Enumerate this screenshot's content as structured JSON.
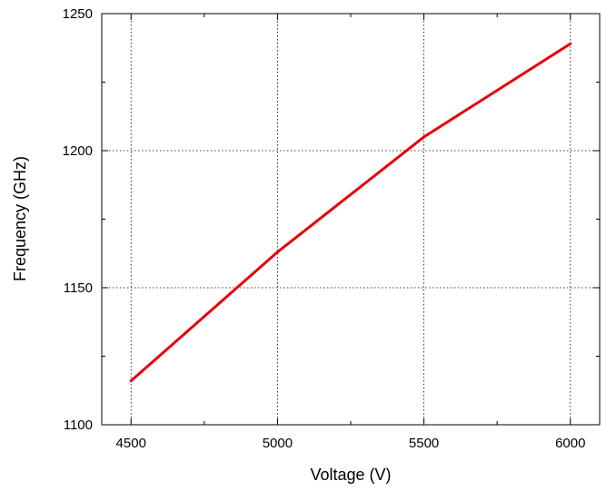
{
  "chart_data": {
    "type": "line",
    "xlabel": "Voltage (V)",
    "ylabel": "Frequency (GHz)",
    "xlim": [
      4400,
      6100
    ],
    "ylim": [
      1100,
      1250
    ],
    "xticks": [
      4500,
      5000,
      5500,
      6000
    ],
    "yticks": [
      1100,
      1150,
      1200,
      1250
    ],
    "xminor": [
      4750,
      5250,
      5750
    ],
    "yminor": [
      1125,
      1175,
      1225
    ],
    "grid": true,
    "series": [
      {
        "color": "#e8000b",
        "x": [
          4500,
          5000,
          5500,
          6000
        ],
        "values": [
          1116,
          1163,
          1205,
          1239
        ]
      }
    ]
  }
}
